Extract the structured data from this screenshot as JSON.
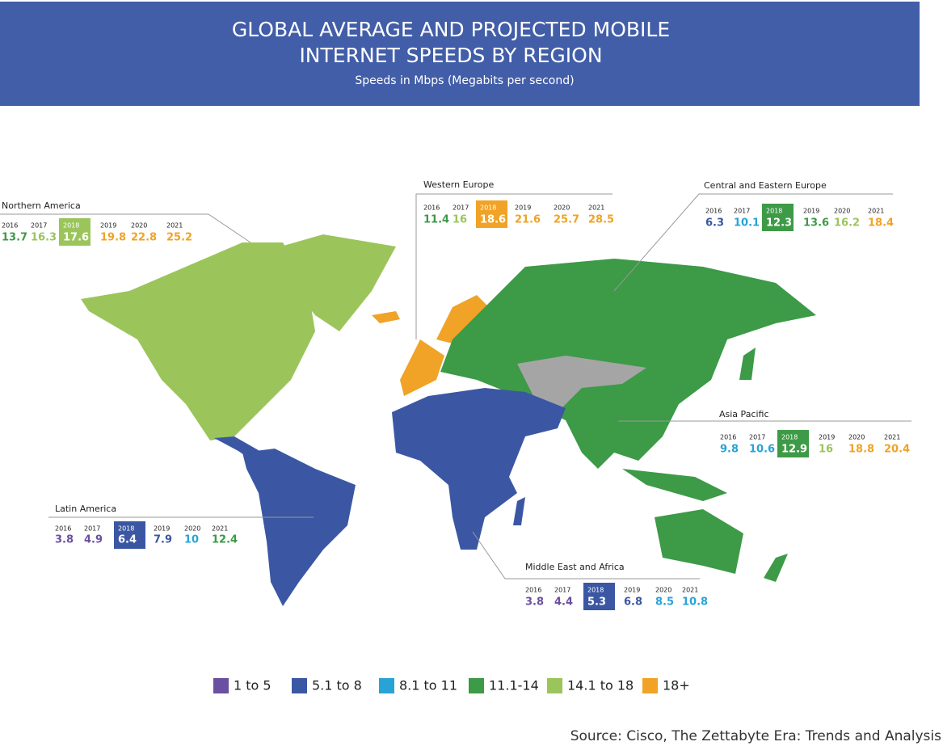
{
  "header": {
    "title": [
      "GLOBAL AVERAGE AND PROJECTED MOBILE",
      "INTERNET SPEEDS BY REGION"
    ],
    "subtitle": "Speeds in Mbps (Megabits per second)"
  },
  "regions": [
    {
      "name": "Northern America",
      "years": [
        "2016",
        "2017",
        "2018",
        "2019",
        "2020",
        "2021"
      ],
      "values": [
        13.7,
        16.3,
        17.6,
        19.8,
        22.8,
        25.2
      ],
      "colors": [
        "#3d9a47",
        "#9bc55b",
        "#9bc55b",
        "#f0a326",
        "#f0a326",
        "#f0a326"
      ]
    },
    {
      "name": "Western Europe",
      "years": [
        "2016",
        "2017",
        "2018",
        "2019",
        "2020",
        "2021"
      ],
      "values": [
        11.4,
        16,
        18.6,
        21.6,
        25.7,
        28.5
      ],
      "colors": [
        "#3d9a47",
        "#9bc55b",
        "#f0a326",
        "#f0a326",
        "#f0a326",
        "#f0a326"
      ]
    },
    {
      "name": "Central and Eastern Europe",
      "years": [
        "2016",
        "2017",
        "2018",
        "2019",
        "2020",
        "2021"
      ],
      "values": [
        6.3,
        10.1,
        12.3,
        13.6,
        16.2,
        18.4
      ],
      "colors": [
        "#3b57a3",
        "#29a3d6",
        "#3d9a47",
        "#3d9a47",
        "#9bc55b",
        "#f0a326"
      ]
    },
    {
      "name": "Asia Pacific",
      "years": [
        "2016",
        "2017",
        "2018",
        "2019",
        "2020",
        "2021"
      ],
      "values": [
        9.8,
        10.6,
        12.9,
        16,
        18.8,
        20.4
      ],
      "colors": [
        "#29a3d6",
        "#29a3d6",
        "#3d9a47",
        "#9bc55b",
        "#f0a326",
        "#f0a326"
      ]
    },
    {
      "name": "Latin America",
      "years": [
        "2016",
        "2017",
        "2018",
        "2019",
        "2020",
        "2021"
      ],
      "values": [
        3.8,
        4.9,
        6.4,
        7.9,
        10,
        12.4
      ],
      "colors": [
        "#6b4fa0",
        "#6b4fa0",
        "#3b57a3",
        "#3b57a3",
        "#29a3d6",
        "#3d9a47"
      ]
    },
    {
      "name": "Middle East and Africa",
      "years": [
        "2016",
        "2017",
        "2018",
        "2019",
        "2020",
        "2021"
      ],
      "values": [
        3.8,
        4.4,
        5.3,
        6.8,
        8.5,
        10.8
      ],
      "colors": [
        "#6b4fa0",
        "#6b4fa0",
        "#3b57a3",
        "#3b57a3",
        "#29a3d6",
        "#29a3d6"
      ]
    }
  ],
  "legend": [
    {
      "label": "1 to 5",
      "color": "#6b4fa0"
    },
    {
      "label": "5.1 to 8",
      "color": "#3b57a3"
    },
    {
      "label": "8.1 to 11",
      "color": "#29a3d6"
    },
    {
      "label": "11.1-14",
      "color": "#3d9a47"
    },
    {
      "label": "14.1 to 18",
      "color": "#9bc55b"
    },
    {
      "label": "18+",
      "color": "#f0a326"
    }
  ],
  "source": "Source: Cisco, The Zettabyte Era: Trends and Analysis"
}
